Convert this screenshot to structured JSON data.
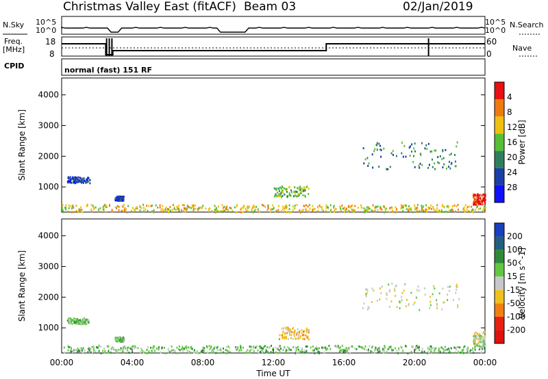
{
  "header": {
    "title": "Christmas Valley East (fitACF)",
    "beam": "Beam 03",
    "date": "02/Jan/2019"
  },
  "status_panel": {
    "nsky_label": "N.Sky",
    "nsky_ticks": [
      "10^5",
      "10^0"
    ],
    "nsearch_label": "N.Search",
    "nsearch_ticks": [
      "10^5",
      "10^0"
    ],
    "freq_label": "Freq.",
    "freq_unit": "[MHz]",
    "freq_ticks": [
      "18",
      "8"
    ],
    "nave_label": "Nave",
    "nave_ticks": [
      "60",
      "0"
    ],
    "cpid_label": "CPID",
    "cpid_text": "normal (fast) 151 RF"
  },
  "chart_data": [
    {
      "type": "heatmap",
      "name": "power",
      "ylabel": "Slant Range [km]",
      "ylim": [
        180,
        4550
      ],
      "yticks": [
        "1000",
        "2000",
        "3000",
        "4000"
      ],
      "yticks_values": [
        1000,
        2000,
        3000,
        4000
      ],
      "colorbar_label": "Power [dB]",
      "colorbar_ticks": [
        "4",
        "8",
        "12",
        "16",
        "20",
        "24",
        "28"
      ],
      "colorbar_colors": [
        "#1010ff",
        "#1a3fa8",
        "#2f7f5f",
        "#55c035",
        "#f0c010",
        "#f07a10",
        "#e81010"
      ],
      "scatter_regions": [
        {
          "t0": 0.3,
          "t1": 1.6,
          "r0": 1150,
          "r1": 1350,
          "level": 1
        },
        {
          "t0": 3.0,
          "t1": 3.5,
          "r0": 580,
          "r1": 720,
          "level": 1
        },
        {
          "t0": 12.0,
          "t1": 14.0,
          "r0": 700,
          "r1": 1050,
          "level": 3
        },
        {
          "t0": 17.0,
          "t1": 22.5,
          "r0": 1600,
          "r1": 2500,
          "level": 2
        },
        {
          "t0": 23.3,
          "t1": 24.0,
          "r0": 450,
          "r1": 800,
          "level": 6
        },
        {
          "t0": 0.0,
          "t1": 24.0,
          "r0": 200,
          "r1": 450,
          "level": 4
        }
      ]
    },
    {
      "type": "heatmap",
      "name": "velocity",
      "ylabel": "Slant Range [km]",
      "ylim": [
        180,
        4550
      ],
      "yticks": [
        "1000",
        "2000",
        "3000",
        "4000"
      ],
      "yticks_values": [
        1000,
        2000,
        3000,
        4000
      ],
      "xlabel": "Time UT",
      "xticks": [
        "00:00",
        "04:00",
        "08:00",
        "12:00",
        "16:00",
        "20:00",
        "00:00"
      ],
      "xlim_hours": [
        0,
        24
      ],
      "colorbar_label": "Velocity [m s^-1]",
      "colorbar_ticks": [
        "200",
        "100",
        "50",
        "15",
        "-15",
        "-50",
        "-100",
        "-200"
      ],
      "colorbar_colors": [
        "#1a3fc0",
        "#226080",
        "#2e8a3a",
        "#60c840",
        "#c8c8c8",
        "#f0c020",
        "#f08010",
        "#e82010",
        "#e01010"
      ],
      "scatter_regions": [
        {
          "t0": 0.3,
          "t1": 1.6,
          "r0": 1150,
          "r1": 1350,
          "level": 3
        },
        {
          "t0": 3.0,
          "t1": 3.5,
          "r0": 580,
          "r1": 720,
          "level": 3
        },
        {
          "t0": 12.3,
          "t1": 14.0,
          "r0": 650,
          "r1": 1050,
          "level": 5
        },
        {
          "t0": 17.0,
          "t1": 22.5,
          "r0": 1600,
          "r1": 2500,
          "level": 4
        },
        {
          "t0": 23.3,
          "t1": 24.0,
          "r0": 400,
          "r1": 900,
          "level": 4
        },
        {
          "t0": 0.0,
          "t1": 24.0,
          "r0": 200,
          "r1": 450,
          "level": 3
        }
      ]
    }
  ]
}
